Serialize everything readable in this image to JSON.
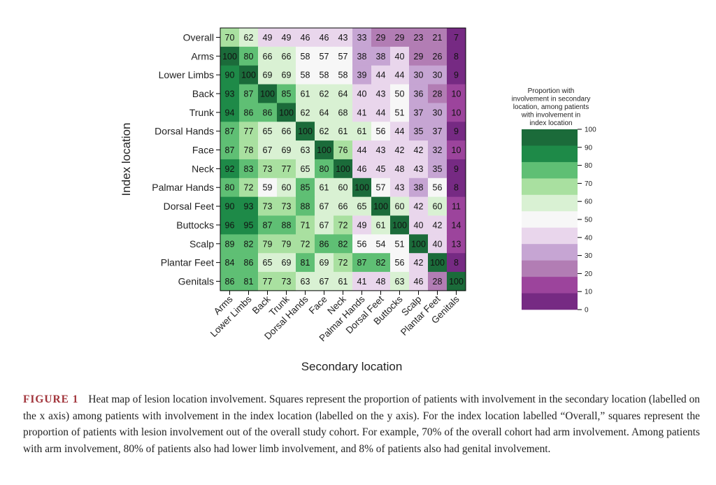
{
  "chart_data": {
    "type": "heatmap",
    "title": "",
    "xlabel": "Secondary location",
    "ylabel": "Index location",
    "rows": [
      "Overall",
      "Arms",
      "Lower Limbs",
      "Back",
      "Trunk",
      "Dorsal Hands",
      "Face",
      "Neck",
      "Palmar Hands",
      "Dorsal Feet",
      "Buttocks",
      "Scalp",
      "Plantar Feet",
      "Genitals"
    ],
    "columns": [
      "Arms",
      "Lower Limbs",
      "Back",
      "Trunk",
      "Dorsal Hands",
      "Face",
      "Neck",
      "Palmar Hands",
      "Dorsal Feet",
      "Buttocks",
      "Scalp",
      "Plantar Feet",
      "Genitals"
    ],
    "values": [
      [
        70,
        62,
        49,
        49,
        46,
        46,
        43,
        33,
        29,
        29,
        23,
        21,
        7
      ],
      [
        100,
        80,
        66,
        66,
        58,
        57,
        57,
        38,
        38,
        40,
        29,
        26,
        8
      ],
      [
        90,
        100,
        69,
        69,
        58,
        58,
        58,
        39,
        44,
        44,
        30,
        30,
        9
      ],
      [
        93,
        87,
        100,
        85,
        61,
        62,
        64,
        40,
        43,
        50,
        36,
        28,
        10
      ],
      [
        94,
        86,
        86,
        100,
        62,
        64,
        68,
        41,
        44,
        51,
        37,
        30,
        10
      ],
      [
        87,
        77,
        65,
        66,
        100,
        62,
        61,
        61,
        56,
        44,
        35,
        37,
        9
      ],
      [
        87,
        78,
        67,
        69,
        63,
        100,
        76,
        44,
        43,
        42,
        42,
        32,
        10
      ],
      [
        92,
        83,
        73,
        77,
        65,
        80,
        100,
        46,
        45,
        48,
        43,
        35,
        9
      ],
      [
        80,
        72,
        59,
        60,
        85,
        61,
        60,
        100,
        57,
        43,
        38,
        56,
        8
      ],
      [
        90,
        93,
        73,
        73,
        88,
        67,
        66,
        65,
        100,
        60,
        42,
        60,
        11
      ],
      [
        96,
        95,
        87,
        88,
        71,
        67,
        72,
        49,
        61,
        100,
        40,
        42,
        14
      ],
      [
        89,
        82,
        79,
        79,
        72,
        86,
        82,
        56,
        54,
        51,
        100,
        40,
        13
      ],
      [
        84,
        86,
        65,
        69,
        81,
        69,
        72,
        87,
        82,
        56,
        42,
        100,
        8
      ],
      [
        86,
        81,
        77,
        73,
        63,
        67,
        61,
        41,
        48,
        63,
        46,
        28,
        100
      ]
    ],
    "legend": {
      "title_lines": [
        "Proportion with",
        "involvement in secondary",
        "location, among patients",
        "with involvement in",
        "index location"
      ],
      "ticks": [
        0,
        10,
        20,
        30,
        40,
        50,
        60,
        70,
        80,
        90,
        100
      ]
    },
    "colors": [
      "#762a83",
      "#9c449c",
      "#b27db4",
      "#c6a5d3",
      "#e9d6ec",
      "#f7f7f7",
      "#d9f1d3",
      "#a9e0a0",
      "#5fbf74",
      "#1e8a48",
      "#1b6b3a"
    ],
    "text_color": "#111111"
  },
  "caption": {
    "label": "FIGURE 1",
    "text": "Heat map of lesion location involvement. Squares represent the proportion of patients with involvement in the secondary location (labelled on the x axis) among patients with involvement in the index location (labelled on the y axis). For the index location labelled “Overall,” squares represent the proportion of patients with lesion involvement out of the overall study cohort. For example, 70% of the overall cohort had arm involvement. Among patients with arm involvement, 80% of patients also had lower limb involvement, and 8% of patients also had genital involvement."
  }
}
